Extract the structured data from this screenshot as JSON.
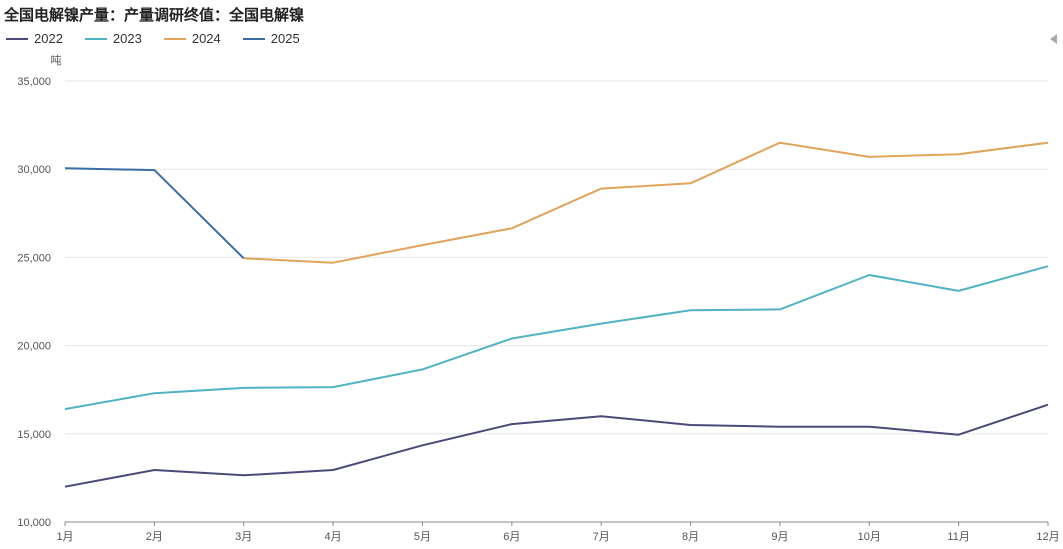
{
  "chart_data": {
    "type": "line",
    "title": "全国电解镍产量：产量调研终值：全国电解镍",
    "ylabel": "吨",
    "xlabel": "",
    "categories": [
      "1月",
      "2月",
      "3月",
      "4月",
      "5月",
      "6月",
      "7月",
      "8月",
      "9月",
      "10月",
      "11月",
      "12月"
    ],
    "ylim": [
      10000,
      35000
    ],
    "yticks": [
      10000,
      15000,
      20000,
      25000,
      30000,
      35000
    ],
    "ytick_labels": [
      "10,000",
      "15,000",
      "20,000",
      "25,000",
      "30,000",
      "35,000"
    ],
    "grid": true,
    "legend_position": "top-left",
    "series": [
      {
        "name": "2022",
        "color": "#4a4a7a",
        "values": [
          12000,
          12950,
          12650,
          12950,
          14350,
          15550,
          16000,
          15500,
          15400,
          15400,
          14950,
          16650
        ]
      },
      {
        "name": "2023",
        "color": "#4fb3c4",
        "values": [
          16400,
          17300,
          17600,
          17650,
          18650,
          20400,
          21250,
          22000,
          22050,
          24000,
          23100,
          24500
        ]
      },
      {
        "name": "2024",
        "color": "#e0a45a",
        "values": [
          null,
          null,
          24950,
          24700,
          25700,
          26650,
          28900,
          29200,
          31500,
          30700,
          30850,
          31500
        ]
      },
      {
        "name": "2025",
        "color": "#3a6ea5",
        "values": [
          30050,
          29950,
          24950,
          null,
          null,
          null,
          null,
          null,
          null,
          null,
          null,
          null
        ]
      }
    ]
  }
}
